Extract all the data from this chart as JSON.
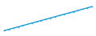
{
  "x": [
    0,
    1,
    2,
    3,
    4,
    5,
    6,
    7,
    8,
    9,
    10,
    11,
    12,
    13,
    14,
    15,
    16,
    17,
    18,
    19
  ],
  "y": [
    0,
    1,
    2,
    3,
    4,
    5,
    6,
    7,
    8,
    9,
    10,
    11,
    12,
    13,
    14,
    15,
    16,
    17,
    18,
    19
  ],
  "line_color": "#1c9fd6",
  "line_width": 1.0,
  "marker": "o",
  "marker_size": 1.2,
  "background_color": "#ffffff",
  "ylim": [
    -2,
    22
  ],
  "xlim": [
    -0.5,
    19.5
  ]
}
